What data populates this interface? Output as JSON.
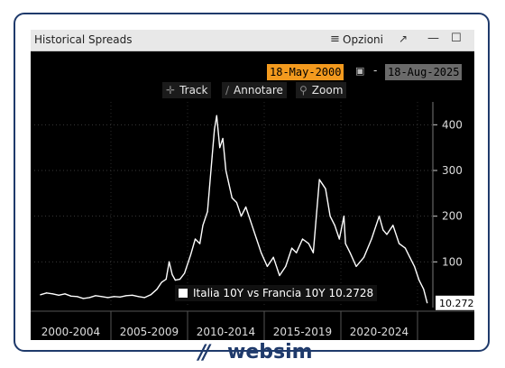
{
  "window": {
    "title": "Historical Spreads",
    "menu_label": "Opzioni",
    "icons": [
      "menu-icon",
      "expand-icon",
      "minimize-icon",
      "maximize-icon"
    ]
  },
  "date_range": {
    "start": "18-May-2000",
    "separator": "-",
    "end": "18-Aug-2025"
  },
  "toolbar": {
    "track": "Track",
    "annotate": "Annotare",
    "zoom": "Zoom"
  },
  "legend": {
    "label": "Italia 10Y vs Francia 10Y",
    "value": "10.2728"
  },
  "brand": {
    "name": "websim",
    "color": "#1f3a6b"
  },
  "chart_data": {
    "type": "line",
    "series": [
      {
        "name": "Italia 10Y vs Francia 10Y",
        "x": [
          2000.4,
          2000.8,
          2001.2,
          2001.6,
          2002.0,
          2002.4,
          2002.8,
          2003.2,
          2003.6,
          2004.0,
          2004.4,
          2004.8,
          2005.2,
          2005.6,
          2006.0,
          2006.4,
          2006.8,
          2007.2,
          2007.6,
          2008.0,
          2008.3,
          2008.6,
          2008.8,
          2009.0,
          2009.2,
          2009.5,
          2009.8,
          2010.2,
          2010.5,
          2010.8,
          2011.0,
          2011.3,
          2011.6,
          2011.75,
          2011.9,
          2012.1,
          2012.3,
          2012.5,
          2012.7,
          2012.9,
          2013.2,
          2013.5,
          2013.8,
          2014.1,
          2014.5,
          2014.8,
          2015.2,
          2015.6,
          2016.0,
          2016.4,
          2016.8,
          2017.1,
          2017.5,
          2017.9,
          2018.2,
          2018.4,
          2018.6,
          2018.8,
          2019.0,
          2019.3,
          2019.6,
          2019.9,
          2020.2,
          2020.3,
          2020.6,
          2021.0,
          2021.5,
          2022.0,
          2022.3,
          2022.5,
          2022.75,
          2023.0,
          2023.4,
          2023.8,
          2024.2,
          2024.5,
          2024.8,
          2025.1,
          2025.4,
          2025.63
        ],
        "y": [
          28,
          32,
          30,
          27,
          30,
          25,
          24,
          20,
          22,
          26,
          24,
          22,
          24,
          23,
          26,
          27,
          24,
          22,
          28,
          40,
          55,
          62,
          100,
          72,
          60,
          62,
          75,
          115,
          150,
          140,
          180,
          210,
          330,
          390,
          420,
          350,
          370,
          300,
          270,
          240,
          230,
          200,
          220,
          190,
          150,
          120,
          90,
          110,
          70,
          90,
          130,
          120,
          150,
          140,
          120,
          200,
          280,
          270,
          260,
          200,
          180,
          150,
          200,
          140,
          120,
          90,
          110,
          150,
          180,
          200,
          170,
          160,
          180,
          140,
          130,
          110,
          90,
          60,
          40,
          10.27
        ]
      }
    ],
    "xlim": [
      2000,
      2026
    ],
    "ylim": [
      0,
      450
    ],
    "y_ticks": [
      100,
      200,
      300,
      400
    ],
    "x_tick_labels": [
      "2000-2004",
      "2005-2009",
      "2010-2014",
      "2015-2019",
      "2020-2024"
    ],
    "last_value_label": "10.272",
    "grid": true,
    "legend_position": "bottom-right"
  }
}
